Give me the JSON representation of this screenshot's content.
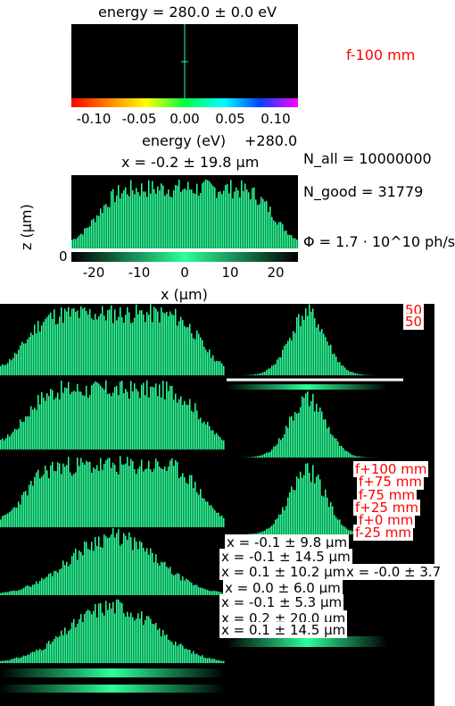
{
  "top_title": "energy = 280.0 ± 0.0 eV",
  "focus_label": "f-100 mm",
  "energy_ticks": [
    "-0.10",
    "-0.05",
    "0.00",
    "0.05",
    "0.10"
  ],
  "energy_axis_label": "energy (eV)",
  "energy_offset": "+280.0",
  "main_title": "x = -0.2 ± 19.8 μm",
  "n_all": "N_all = 10000000",
  "n_good": "N_good = 31779",
  "flux": "Φ = 1.7 · 10^10 ph/s",
  "x_ticks": [
    "-20",
    "-10",
    "0",
    "10",
    "20"
  ],
  "z_tick": "0",
  "x_axis_label": "x (μm)",
  "z_axis_label": "z (μm)",
  "overlay_numbers": [
    "50",
    "50"
  ],
  "overlay_focus_labels": [
    "f+100 mm",
    "f+75 mm",
    "f-75 mm",
    "f+25 mm",
    "f+0 mm",
    "f-25 mm"
  ],
  "overlay_titles": [
    "x = -0.1 ± 9.8 μm",
    "x = -0.1 ± 14.5 μm",
    "x = 0.1 ± 10.2 μm",
    "x = -0.0 ± 3.7",
    "x = 0.0 ± 6.0 μm",
    "x = -0.1 ± 5.3 μm",
    "x = 0.2 ± 20.0 μm",
    "x = 0.1 ± 14.5 μm"
  ],
  "colors": {
    "beam": "#2dff9a",
    "background": "#000000",
    "label_red": "#ff0000"
  },
  "chart_data": [
    {
      "type": "bar",
      "title": "x = -0.2 ± 19.8 μm",
      "xlabel": "x (μm)",
      "ylabel": "z (μm)",
      "xlim": [
        -25,
        25
      ],
      "profile": "flat-top",
      "sigma": 19.8
    },
    {
      "type": "bar",
      "title": "energy = 280.0 ± 0.0 eV",
      "xlabel": "energy (eV)",
      "xlim": [
        -0.125,
        0.125
      ],
      "profile": "delta",
      "center": 0.0
    }
  ]
}
